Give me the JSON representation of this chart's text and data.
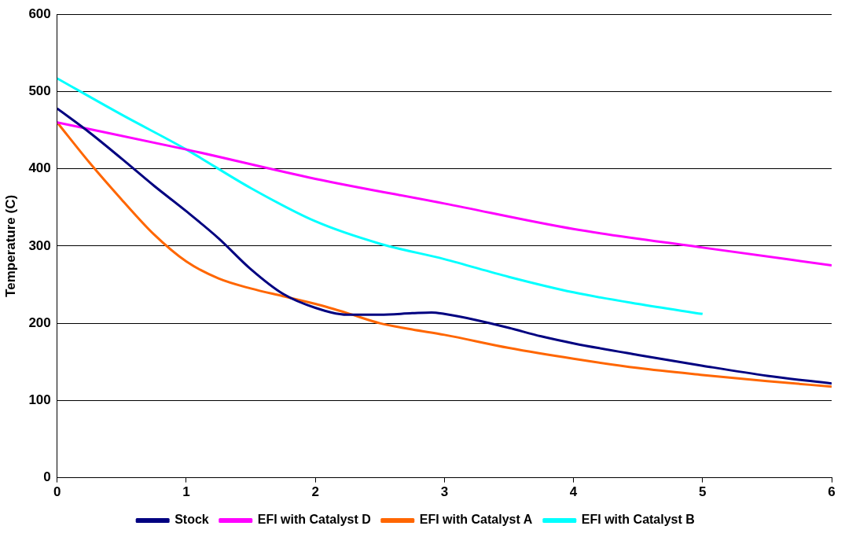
{
  "chart_data": {
    "type": "line",
    "ylabel": "Temperature (C)",
    "xlim": [
      0,
      6
    ],
    "xticks": [
      0,
      1,
      2,
      3,
      4,
      5,
      6
    ],
    "ylim": [
      0,
      600
    ],
    "yticks": [
      0,
      100,
      200,
      300,
      400,
      500,
      600
    ],
    "grid": "y",
    "legend": "bottom",
    "marker": "none",
    "line_style": "solid",
    "series": [
      {
        "name": "Stock",
        "color": "#000080",
        "x": [
          0,
          0.25,
          0.5,
          0.75,
          1,
          1.25,
          1.5,
          1.75,
          2,
          2.25,
          2.5,
          2.75,
          2.9,
          3,
          3.25,
          3.5,
          3.75,
          4,
          4.5,
          5,
          5.5,
          6
        ],
        "values": [
          478,
          447,
          413,
          378,
          345,
          310,
          270,
          238,
          220,
          211,
          211,
          213,
          214,
          212,
          204,
          194,
          183,
          174,
          159,
          145,
          132,
          122
        ]
      },
      {
        "name": "EFI with Catalyst D",
        "color": "#ff00ff",
        "x": [
          0,
          1,
          2,
          3,
          4,
          5,
          6
        ],
        "values": [
          460,
          425,
          387,
          355,
          322,
          298,
          275
        ]
      },
      {
        "name": "EFI with Catalyst A",
        "color": "#ff6600",
        "x": [
          0,
          0.25,
          0.5,
          0.75,
          1,
          1.25,
          1.5,
          1.75,
          2,
          2.25,
          2.5,
          2.75,
          3,
          3.5,
          4,
          4.5,
          5,
          5.5,
          6
        ],
        "values": [
          460,
          408,
          360,
          315,
          280,
          258,
          245,
          235,
          225,
          213,
          200,
          192,
          185,
          168,
          154,
          142,
          133,
          125,
          118
        ]
      },
      {
        "name": "EFI with Catalyst B",
        "color": "#00ffff",
        "x": [
          0,
          0.5,
          1,
          1.5,
          2,
          2.5,
          3,
          3.5,
          4,
          4.5,
          5
        ],
        "values": [
          517,
          470,
          425,
          375,
          332,
          303,
          283,
          260,
          240,
          225,
          212
        ]
      }
    ]
  }
}
